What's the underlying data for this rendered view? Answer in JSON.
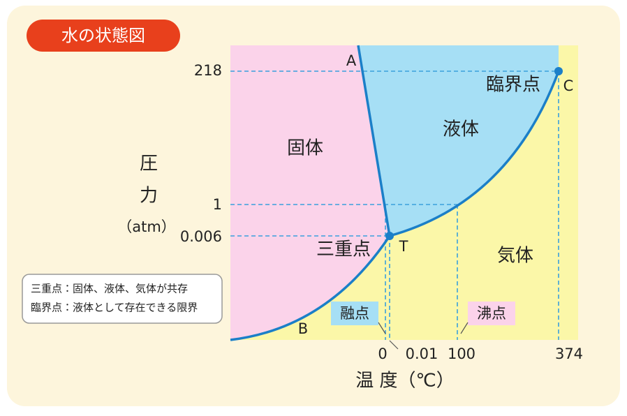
{
  "title": "水の状態図",
  "y_axis": {
    "label_chars": [
      "圧",
      "力"
    ],
    "unit": "（atm）",
    "ticks": [
      "218",
      "1",
      "0.006"
    ]
  },
  "x_axis": {
    "label": "温 度（℃）",
    "ticks": [
      "0",
      "0.01",
      "100",
      "374"
    ]
  },
  "regions": {
    "solid": "固体",
    "liquid": "液体",
    "gas": "気体"
  },
  "points": {
    "A": "A",
    "B": "B",
    "C": "C",
    "T": "T"
  },
  "point_names": {
    "critical": "臨界点",
    "triple": "三重点",
    "melting": "融点",
    "boiling": "沸点"
  },
  "note": [
    "三重点：固体、液体、気体が共存",
    "臨界点：液体として存在できる限界"
  ]
}
